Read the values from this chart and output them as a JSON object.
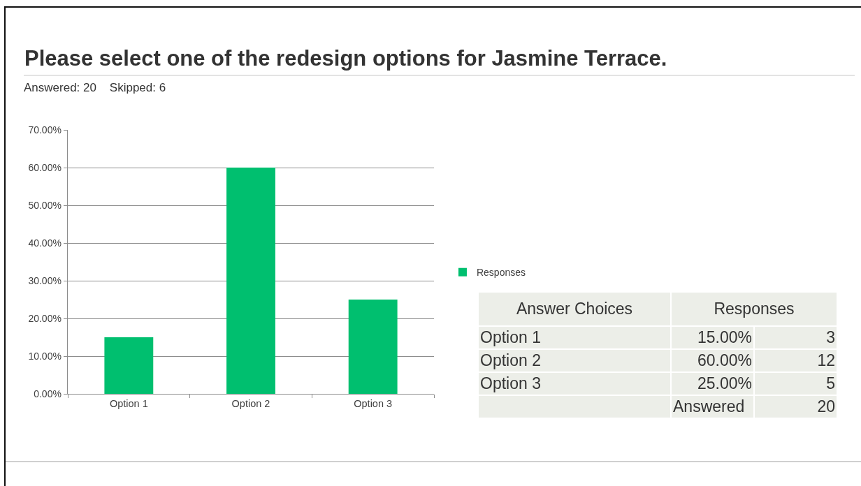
{
  "chart_data": {
    "type": "bar",
    "title": "Please select one of the redesign options for Jasmine Terrace.",
    "subtitle": "Answered: 20    Skipped: 6",
    "categories": [
      "Option 1",
      "Option 2",
      "Option 3"
    ],
    "series": [
      {
        "name": "Responses",
        "color": "#00bf6f",
        "values": [
          15,
          60,
          25
        ]
      }
    ],
    "ylim": [
      0,
      70
    ],
    "yticks": [
      {
        "value": 0,
        "label": "0.00%"
      },
      {
        "value": 10,
        "label": "10.00%"
      },
      {
        "value": 20,
        "label": "20.00%"
      },
      {
        "value": 30,
        "label": "30.00%"
      },
      {
        "value": 40,
        "label": "40.00%"
      },
      {
        "value": 50,
        "label": "50.00%"
      },
      {
        "value": 60,
        "label": "60.00%"
      },
      {
        "value": 70,
        "label": "70.00%"
      }
    ],
    "grid": "y",
    "legend": "right",
    "annotations": [
      "Answer Choices",
      "Responses",
      "15.00%",
      "60.00%",
      "25.00%",
      "3",
      "12",
      "5",
      "Answered",
      "20"
    ]
  }
}
